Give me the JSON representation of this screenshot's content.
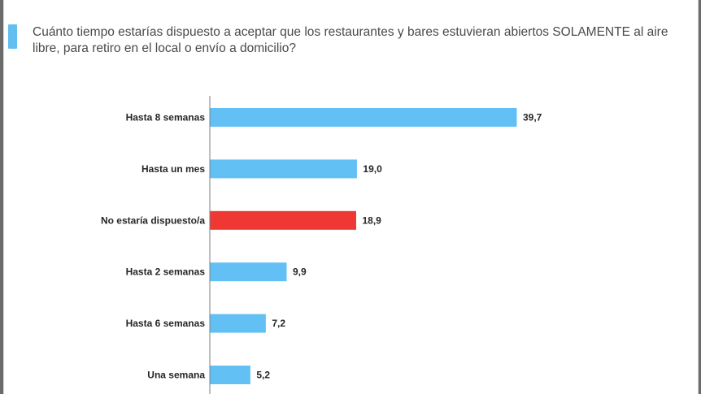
{
  "header": {
    "question": "Cuánto tiempo estarías dispuesto a aceptar que los restaurantes y bares estuvieran abiertos SOLAMENTE al aire libre, para retiro en el local o envío a domicilio?"
  },
  "colors": {
    "accent": "#62bfef",
    "bar_default": "#63c0f5",
    "bar_highlight": "#ef3733",
    "axis": "#7f7f7f"
  },
  "chart_data": {
    "type": "bar",
    "orientation": "horizontal",
    "categories": [
      "Hasta 8 semanas",
      "Hasta un mes",
      "No estaría dispuesto/a",
      "Hasta 2 semanas",
      "Hasta 6 semanas",
      "Una semana"
    ],
    "values": [
      39.7,
      19.0,
      18.9,
      9.9,
      7.2,
      5.2
    ],
    "value_labels": [
      "39,7",
      "19,0",
      "18,9",
      "9,9",
      "7,2",
      "5,2"
    ],
    "highlight_index": 2,
    "xlim": [
      0,
      39.7
    ],
    "grid": false,
    "legend": "none"
  }
}
